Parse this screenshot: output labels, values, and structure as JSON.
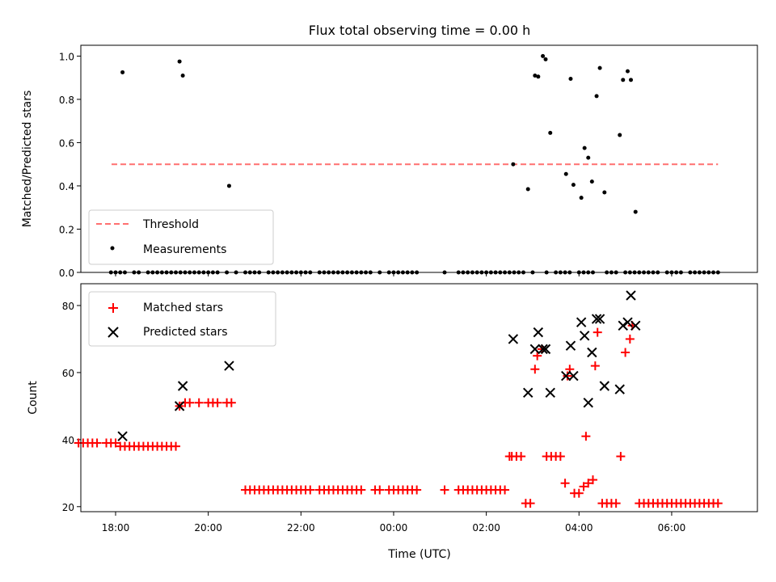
{
  "chart_data": [
    {
      "type": "scatter",
      "title": "Flux total observing time = 0.00 h",
      "xlabel": "",
      "ylabel": "Matched/Predicted stars",
      "xlim": [
        -6.75,
        7.85
      ],
      "ylim": [
        0,
        1.05
      ],
      "x_unit": "hours relative to 00:00 UTC",
      "xticks": [
        -6,
        -4,
        -2,
        0,
        2,
        4,
        6
      ],
      "yticks": [
        0.0,
        0.2,
        0.4,
        0.6,
        0.8,
        1.0
      ],
      "ytick_labels": [
        "0.0",
        "0.2",
        "0.4",
        "0.6",
        "0.8",
        "1.0"
      ],
      "legend_position": "lower-left",
      "threshold": {
        "name": "Threshold",
        "value": 0.5,
        "x_range": [
          -6.75,
          7.0
        ],
        "color": "#ff7070"
      },
      "series": [
        {
          "name": "Measurements",
          "color": "#000000",
          "marker": "dot",
          "x": [
            -6.1,
            -6.0,
            -5.9,
            -5.8,
            -5.6,
            -5.5,
            -5.3,
            -5.2,
            -5.1,
            -5.0,
            -4.9,
            -4.8,
            -4.7,
            -4.6,
            -4.5,
            -4.4,
            -4.3,
            -4.2,
            -4.1,
            -4.0,
            -3.9,
            -3.8,
            -3.6,
            -3.4,
            -3.2,
            -3.1,
            -3.0,
            -2.9,
            -2.7,
            -2.6,
            -2.5,
            -2.4,
            -2.3,
            -2.2,
            -2.1,
            -2.0,
            -1.9,
            -1.8,
            -1.6,
            -1.5,
            -1.4,
            -1.3,
            -1.2,
            -1.1,
            -1.0,
            -0.9,
            -0.8,
            -0.7,
            -0.6,
            -0.5,
            -0.3,
            -0.1,
            0.0,
            0.1,
            0.2,
            0.3,
            0.4,
            0.5,
            1.1,
            1.4,
            1.5,
            1.6,
            1.7,
            1.8,
            1.9,
            2.0,
            2.1,
            2.2,
            2.3,
            2.4,
            2.5,
            2.6,
            2.7,
            2.8,
            3.0,
            3.3,
            3.5,
            3.6,
            3.7,
            3.8,
            4.0,
            4.1,
            4.2,
            4.3,
            4.6,
            4.7,
            4.8,
            5.0,
            5.1,
            5.2,
            5.3,
            5.4,
            5.5,
            5.6,
            5.7,
            5.9,
            6.0,
            6.1,
            6.2,
            6.4,
            6.5,
            6.6,
            6.7,
            6.8,
            6.9,
            7.0,
            -5.85,
            -4.62,
            -4.55,
            -3.55,
            2.58,
            2.9,
            3.05,
            3.12,
            3.22,
            3.28,
            3.38,
            3.72,
            3.82,
            3.88,
            4.05,
            4.12,
            4.2,
            4.28,
            4.38,
            4.45,
            4.55,
            4.88,
            4.95,
            5.05,
            5.12,
            5.22
          ],
          "y": [
            0,
            0,
            0,
            0,
            0,
            0,
            0,
            0,
            0,
            0,
            0,
            0,
            0,
            0,
            0,
            0,
            0,
            0,
            0,
            0,
            0,
            0,
            0,
            0,
            0,
            0,
            0,
            0,
            0,
            0,
            0,
            0,
            0,
            0,
            0,
            0,
            0,
            0,
            0,
            0,
            0,
            0,
            0,
            0,
            0,
            0,
            0,
            0,
            0,
            0,
            0,
            0,
            0,
            0,
            0,
            0,
            0,
            0,
            0,
            0,
            0,
            0,
            0,
            0,
            0,
            0,
            0,
            0,
            0,
            0,
            0,
            0,
            0,
            0,
            0,
            0,
            0,
            0,
            0,
            0,
            0,
            0,
            0,
            0,
            0,
            0,
            0,
            0,
            0,
            0,
            0,
            0,
            0,
            0,
            0,
            0,
            0,
            0,
            0,
            0,
            0,
            0,
            0,
            0,
            0,
            0,
            0.925,
            0.975,
            0.91,
            0.4,
            0.5,
            0.385,
            0.91,
            0.905,
            1.0,
            0.985,
            0.645,
            0.455,
            0.895,
            0.405,
            0.345,
            0.575,
            0.53,
            0.42,
            0.815,
            0.945,
            0.37,
            0.635,
            0.89,
            0.93,
            0.89,
            0.28
          ]
        }
      ]
    },
    {
      "type": "scatter",
      "title": "",
      "xlabel": "Time (UTC)",
      "ylabel": "Count",
      "xlim": [
        -6.75,
        7.85
      ],
      "ylim": [
        18.5,
        86.5
      ],
      "x_unit": "hours relative to 00:00 UTC",
      "xticks": [
        -6,
        -4,
        -2,
        0,
        2,
        4,
        6
      ],
      "xtick_labels": [
        "18:00",
        "20:00",
        "22:00",
        "00:00",
        "02:00",
        "04:00",
        "06:00"
      ],
      "yticks": [
        20,
        40,
        60,
        80
      ],
      "ytick_labels": [
        "20",
        "40",
        "60",
        "80"
      ],
      "legend_position": "upper-left",
      "series": [
        {
          "name": "Matched stars",
          "color": "#ff0000",
          "marker": "plus",
          "x": [
            -6.8,
            -6.7,
            -6.6,
            -6.5,
            -6.4,
            -6.2,
            -6.1,
            -6.0,
            -5.9,
            -5.8,
            -5.7,
            -5.6,
            -5.5,
            -5.4,
            -5.3,
            -5.2,
            -5.1,
            -5.0,
            -4.9,
            -4.8,
            -4.7,
            -4.62,
            -4.5,
            -4.4,
            -4.2,
            -4.0,
            -3.9,
            -3.8,
            -3.6,
            -3.5,
            -3.2,
            -3.1,
            -3.0,
            -2.9,
            -2.8,
            -2.7,
            -2.6,
            -2.5,
            -2.4,
            -2.3,
            -2.2,
            -2.1,
            -2.0,
            -1.9,
            -1.8,
            -1.6,
            -1.5,
            -1.4,
            -1.3,
            -1.2,
            -1.1,
            -1.0,
            -0.9,
            -0.8,
            -0.7,
            -0.4,
            -0.3,
            -0.1,
            0.0,
            0.1,
            0.2,
            0.3,
            0.4,
            0.5,
            1.1,
            1.4,
            1.5,
            1.6,
            1.7,
            1.8,
            1.9,
            2.0,
            2.1,
            2.2,
            2.3,
            2.4,
            2.5,
            2.55,
            2.65,
            2.75,
            2.85,
            2.95,
            3.05,
            3.1,
            3.2,
            3.3,
            3.4,
            3.5,
            3.6,
            3.7,
            3.75,
            3.8,
            3.9,
            4.0,
            4.1,
            4.15,
            4.2,
            4.3,
            4.35,
            4.4,
            4.5,
            4.6,
            4.7,
            4.8,
            4.9,
            5.0,
            5.1,
            5.15,
            5.3,
            5.4,
            5.5,
            5.6,
            5.7,
            5.8,
            5.9,
            6.0,
            6.1,
            6.2,
            6.3,
            6.4,
            6.5,
            6.6,
            6.7,
            6.8,
            6.9,
            7.0
          ],
          "y": [
            39,
            39,
            39,
            39,
            39,
            39,
            39,
            39,
            38,
            38,
            38,
            38,
            38,
            38,
            38,
            38,
            38,
            38,
            38,
            38,
            38,
            50,
            51,
            51,
            51,
            51,
            51,
            51,
            51,
            51,
            25,
            25,
            25,
            25,
            25,
            25,
            25,
            25,
            25,
            25,
            25,
            25,
            25,
            25,
            25,
            25,
            25,
            25,
            25,
            25,
            25,
            25,
            25,
            25,
            25,
            25,
            25,
            25,
            25,
            25,
            25,
            25,
            25,
            25,
            25,
            25,
            25,
            25,
            25,
            25,
            25,
            25,
            25,
            25,
            25,
            25,
            35,
            35,
            35,
            35,
            21,
            21,
            61,
            65,
            67,
            35,
            35,
            35,
            35,
            27,
            59,
            61,
            24,
            24,
            26,
            41,
            27,
            28,
            62,
            72,
            21,
            21,
            21,
            21,
            35,
            66,
            70,
            74,
            21,
            21,
            21,
            21,
            21,
            21,
            21,
            21,
            21,
            21,
            21,
            21,
            21,
            21,
            21,
            21,
            21,
            21
          ]
        },
        {
          "name": "Predicted stars",
          "color": "#000000",
          "marker": "x",
          "x": [
            -5.85,
            -4.62,
            -4.55,
            -3.55,
            2.58,
            2.9,
            3.05,
            3.12,
            3.22,
            3.28,
            3.38,
            3.72,
            3.82,
            3.88,
            4.05,
            4.12,
            4.2,
            4.28,
            4.38,
            4.45,
            4.55,
            4.88,
            4.95,
            5.05,
            5.12,
            5.22
          ],
          "y": [
            41,
            50,
            56,
            62,
            70,
            54,
            67,
            72,
            67,
            67,
            54,
            59,
            68,
            59,
            75,
            71,
            51,
            66,
            76,
            76,
            56,
            55,
            74,
            75,
            83,
            74
          ]
        }
      ]
    }
  ]
}
